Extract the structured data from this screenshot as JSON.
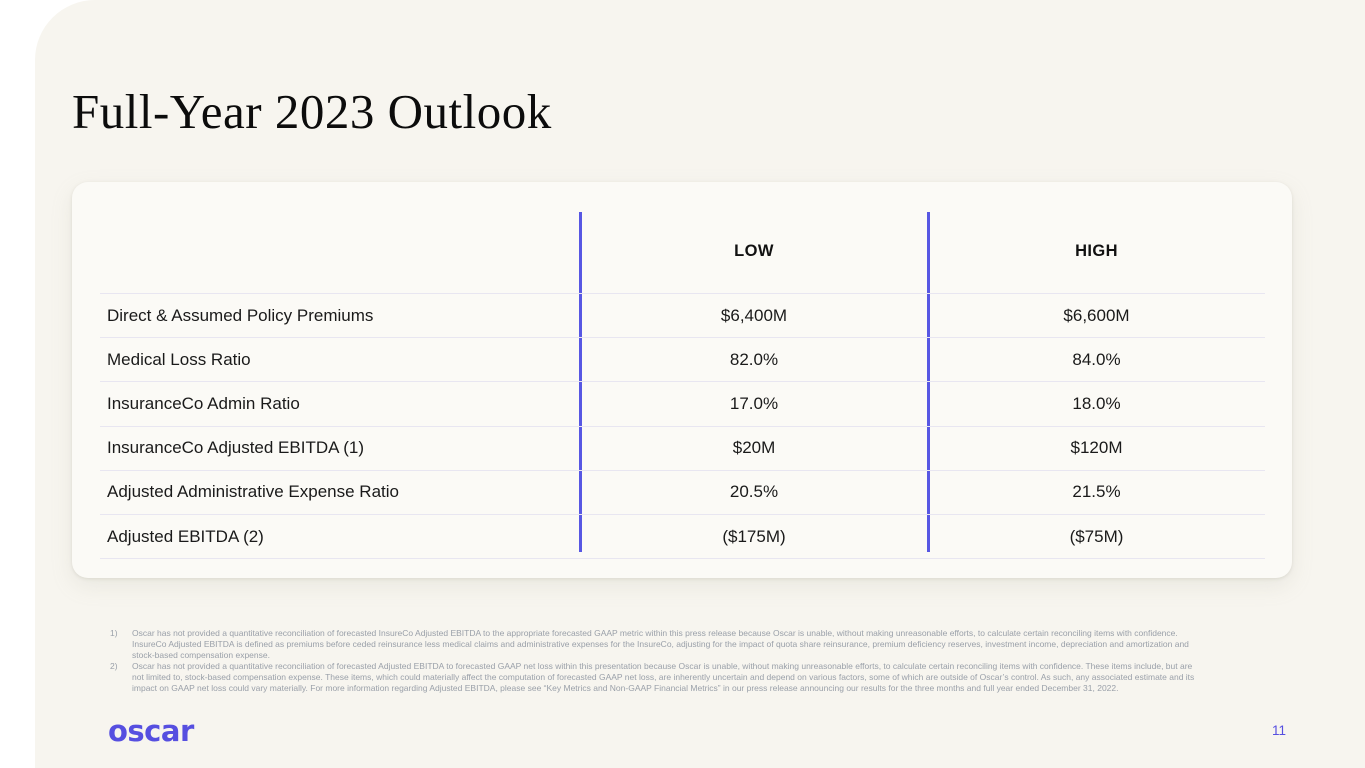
{
  "slide": {
    "title": "Full-Year 2023 Outlook",
    "page_number": "11",
    "logo_text": "oscar"
  },
  "table": {
    "columns": [
      "LOW",
      "HIGH"
    ],
    "rows": [
      {
        "label": "Direct & Assumed Policy Premiums",
        "low": "$6,400M",
        "high": "$6,600M"
      },
      {
        "label": "Medical Loss Ratio",
        "low": "82.0%",
        "high": "84.0%"
      },
      {
        "label": "InsuranceCo Admin Ratio",
        "low": "17.0%",
        "high": "18.0%"
      },
      {
        "label": "InsuranceCo Adjusted EBITDA (1)",
        "low": "$20M",
        "high": "$120M"
      },
      {
        "label": "Adjusted Administrative Expense Ratio",
        "low": "20.5%",
        "high": "21.5%"
      },
      {
        "label": "Adjusted EBITDA (2)",
        "low": "($175M)",
        "high": "($75M)"
      }
    ]
  },
  "footnotes": [
    {
      "marker": "1)",
      "text": "Oscar has not provided a quantitative reconciliation of forecasted InsureCo Adjusted EBITDA to the appropriate forecasted GAAP metric within this press release because Oscar is unable, without making unreasonable efforts, to calculate certain reconciling items with confidence. InsureCo Adjusted EBITDA is defined as premiums before ceded reinsurance less medical claims and administrative expenses for the InsureCo, adjusting for the impact of quota share reinsurance, premium deficiency reserves, investment income, depreciation and amortization and stock-based compensation expense."
    },
    {
      "marker": "2)",
      "text": "Oscar has not provided a quantitative reconciliation of forecasted Adjusted EBITDA to forecasted GAAP net loss within this presentation because Oscar is unable, without making unreasonable efforts, to calculate certain reconciling items with confidence. These items include, but are not limited to, stock-based compensation expense. These items, which could materially affect the computation of forecasted GAAP net loss, are inherently uncertain and depend on various factors, some of which are outside of Oscar’s control. As such, any associated estimate and its impact on GAAP net loss could vary materially. For more information regarding Adjusted EBITDA, please see “Key Metrics and Non-GAAP Financial Metrics” in our press release announcing our results for the three months and full year ended December 31, 2022."
    }
  ],
  "colors": {
    "accent_purple": "#564fe0",
    "divider_blue": "#5757e3",
    "row_divider": "#e8e6f1",
    "background": "#f7f5ef",
    "card": "#fbfaf6"
  }
}
